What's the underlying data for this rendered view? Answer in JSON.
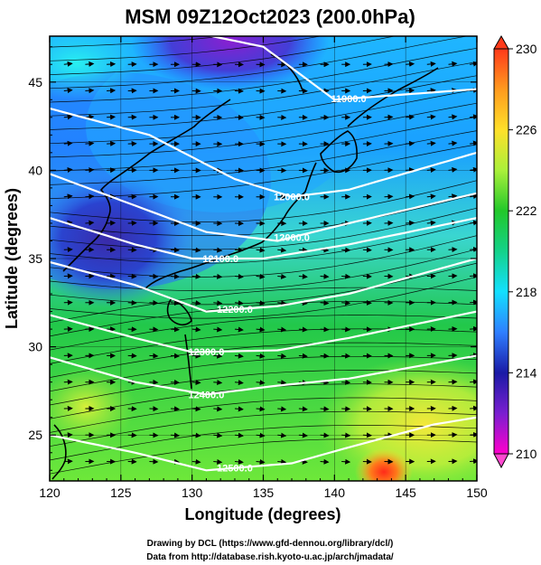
{
  "chart_data": {
    "type": "heatmap",
    "title": "MSM 09Z12Oct2023 (200.0hPa)",
    "xlabel": "Longitude (degrees)",
    "ylabel": "Latitude  (degrees)",
    "xlim": [
      120,
      150
    ],
    "ylim": [
      22.4,
      47.6
    ],
    "xticks": [
      120,
      125,
      130,
      135,
      140,
      145,
      150
    ],
    "yticks": [
      25,
      30,
      35,
      40,
      45
    ],
    "colorbar": {
      "min": 210,
      "max": 230,
      "ticks": [
        210,
        214,
        218,
        222,
        226,
        230
      ],
      "colors": [
        "#ff00cc",
        "#7a1fd0",
        "#1a1aa6",
        "#2f7fff",
        "#13e0ff",
        "#14d28a",
        "#22c82a",
        "#aaf03a",
        "#ffe02a",
        "#ff9a1e",
        "#ff3a1a"
      ]
    },
    "contours": [
      {
        "label": "11900.0",
        "lat_at_lon": [
          [
            120,
            49.5
          ],
          [
            135,
            47
          ],
          [
            140,
            44
          ],
          [
            150,
            44.6
          ]
        ]
      },
      {
        "label": "12000.0",
        "lat_at_lon": [
          [
            120,
            43.5
          ],
          [
            127,
            42
          ],
          [
            133,
            39.5
          ],
          [
            137,
            38.5
          ],
          [
            141,
            38.9
          ],
          [
            150,
            41
          ]
        ]
      },
      {
        "label": "12000.0",
        "lat_at_lon": [
          [
            120,
            39.8
          ],
          [
            126,
            38
          ],
          [
            131,
            36.5
          ],
          [
            136,
            36
          ],
          [
            141,
            37
          ],
          [
            150,
            38.7
          ]
        ]
      },
      {
        "label": "12100.0",
        "lat_at_lon": [
          [
            120,
            37.3
          ],
          [
            126,
            35.8
          ],
          [
            130,
            35
          ],
          [
            135,
            35
          ],
          [
            141,
            35.8
          ],
          [
            150,
            37.3
          ]
        ]
      },
      {
        "label": "12200.0",
        "lat_at_lon": [
          [
            120,
            34.8
          ],
          [
            126,
            33.5
          ],
          [
            131,
            32
          ],
          [
            136,
            32.3
          ],
          [
            141,
            33
          ],
          [
            150,
            35
          ]
        ]
      },
      {
        "label": "12300.0",
        "lat_at_lon": [
          [
            120,
            31.8
          ],
          [
            126,
            30.5
          ],
          [
            130,
            29.7
          ],
          [
            136,
            29.8
          ],
          [
            141,
            30.5
          ],
          [
            150,
            32
          ]
        ]
      },
      {
        "label": "12400.0",
        "lat_at_lon": [
          [
            120,
            29.4
          ],
          [
            126,
            28
          ],
          [
            131,
            27.3
          ],
          [
            136,
            27.8
          ],
          [
            141,
            28.2
          ],
          [
            150,
            29.5
          ]
        ]
      },
      {
        "label": "12500.0",
        "lat_at_lon": [
          [
            120,
            25
          ],
          [
            126,
            24
          ],
          [
            131,
            23
          ],
          [
            137,
            23.4
          ],
          [
            141,
            24.3
          ],
          [
            147,
            25.6
          ],
          [
            150,
            26
          ]
        ]
      }
    ],
    "contour_units": "m",
    "wind_vectors": true,
    "streamlines": true,
    "coastlines": true,
    "grid": true
  },
  "credits": {
    "line1": "Drawing by DCL (https://www.gfd-dennou.org/library/dcl/)",
    "line2": "Data from http://database.rish.kyoto-u.ac.jp/arch/jmadata/"
  }
}
